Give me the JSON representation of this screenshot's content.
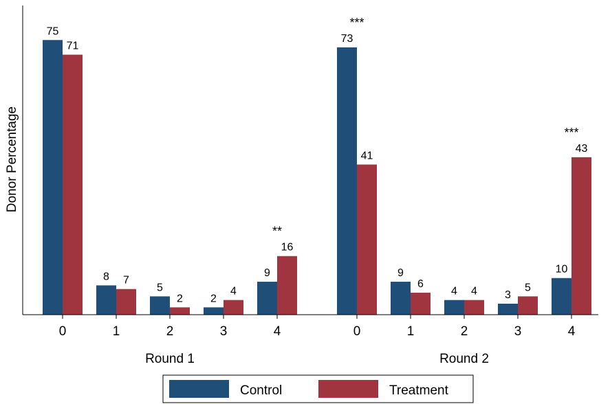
{
  "chart_data": {
    "type": "bar",
    "ylabel": "Donor Percentage",
    "ylim": [
      0,
      80
    ],
    "grid": false,
    "legend_placement": "bottom",
    "groups": [
      {
        "label": "Round 1",
        "categories": [
          "0",
          "1",
          "2",
          "3",
          "4"
        ],
        "series": [
          {
            "name": "Control",
            "values": [
              75,
              8,
              5,
              2,
              9
            ]
          },
          {
            "name": "Treatment",
            "values": [
              71,
              7,
              2,
              4,
              16
            ]
          }
        ],
        "significance": [
          "",
          "",
          "",
          "",
          "**"
        ]
      },
      {
        "label": "Round 2",
        "categories": [
          "0",
          "1",
          "2",
          "3",
          "4"
        ],
        "series": [
          {
            "name": "Control",
            "values": [
              73,
              9,
              4,
              3,
              10
            ]
          },
          {
            "name": "Treatment",
            "values": [
              41,
              6,
              4,
              5,
              43
            ]
          }
        ],
        "significance": [
          "***",
          "",
          "",
          "",
          "***"
        ]
      }
    ],
    "legend": [
      "Control",
      "Treatment"
    ],
    "colors": {
      "Control": "#1f4e79",
      "Treatment": "#a0353f"
    }
  }
}
